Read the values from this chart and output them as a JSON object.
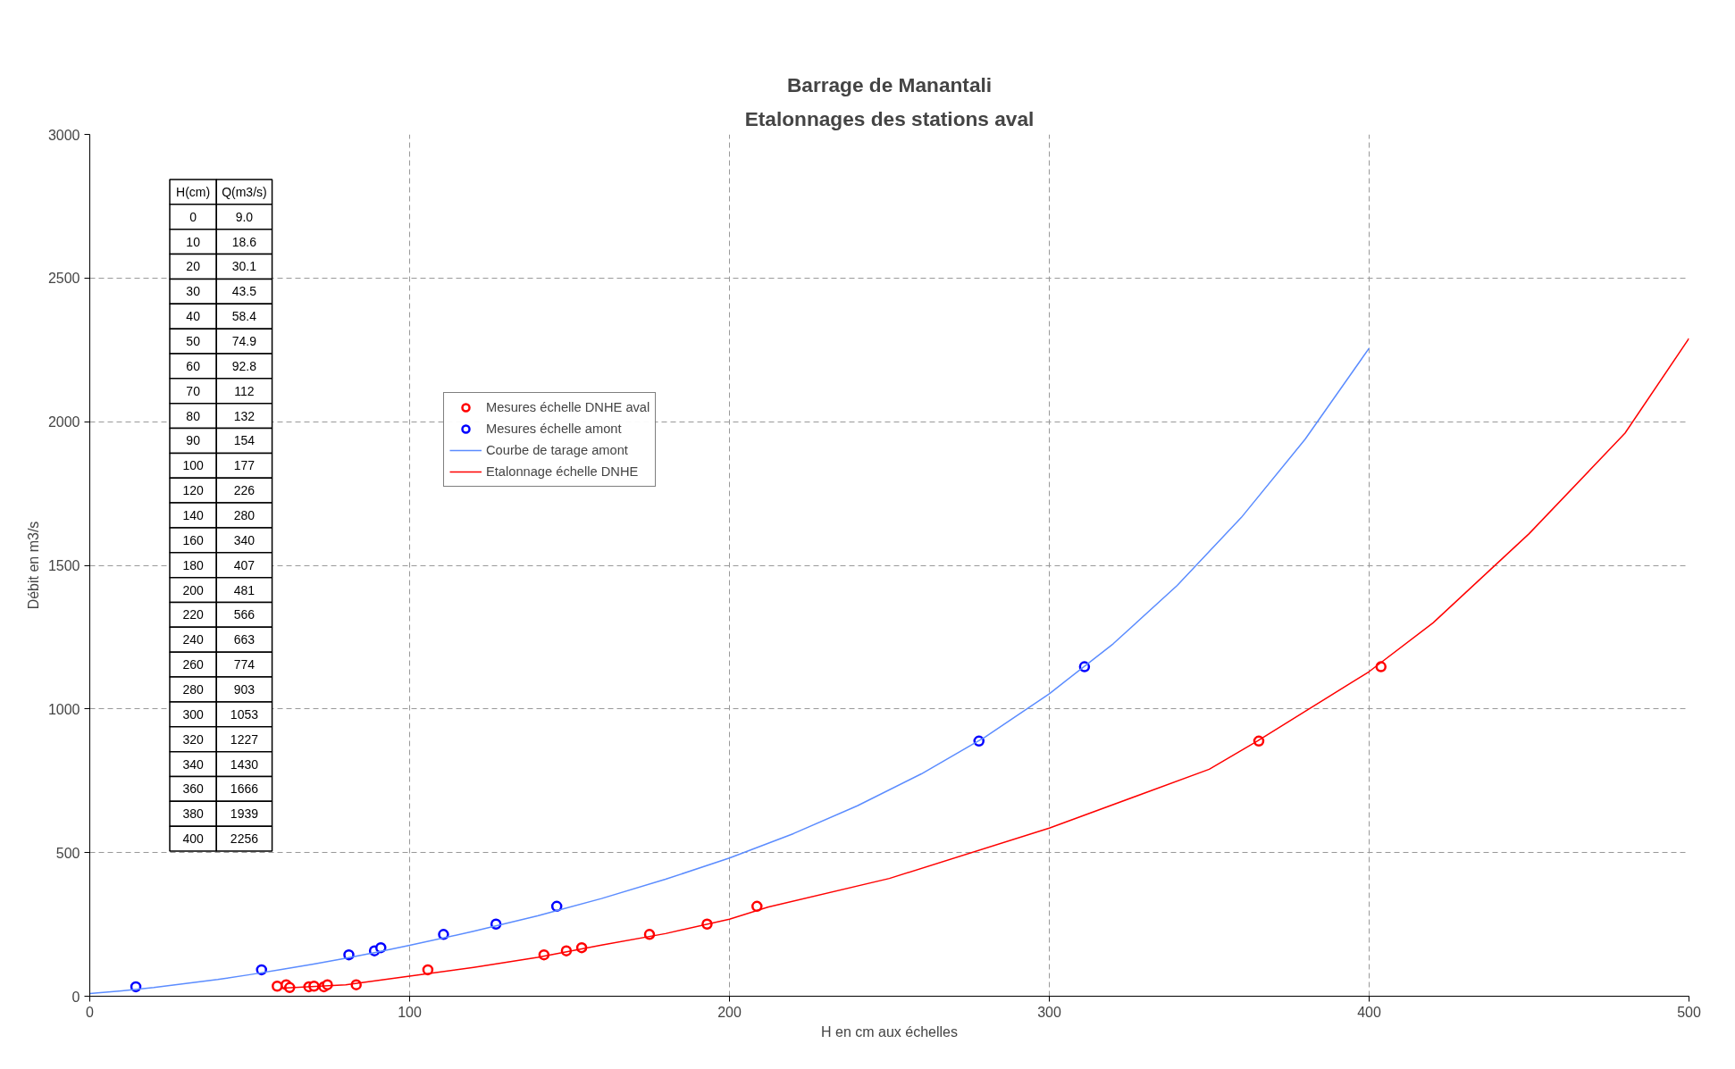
{
  "chart_data": [
    {
      "type": "scatter",
      "title": "Barrage de Manantali",
      "subtitle": "Etalonnages des stations aval",
      "xlabel": "H en cm aux échelles",
      "ylabel": "Débit en m3/s",
      "xlim": [
        0,
        500
      ],
      "ylim": [
        0,
        3000
      ],
      "xticks": [
        0,
        100,
        200,
        300,
        400,
        500
      ],
      "yticks": [
        0,
        500,
        1000,
        1500,
        2000,
        2500,
        3000
      ],
      "grid": true,
      "legend": "top left",
      "series": [
        {
          "name": "Mesures échelle DNHE aval",
          "marker": "circle",
          "color": "#ff0000",
          "x": [
            58.6,
            61.4,
            62.5,
            68.5,
            70.1,
            73.2,
            74.3,
            83.3,
            105.7,
            142,
            149,
            153.8,
            175,
            193,
            208.6,
            365.5,
            403.7
          ],
          "values": [
            35,
            40,
            30,
            33,
            35,
            33,
            40,
            40,
            92,
            144,
            158,
            169,
            215,
            251,
            313,
            888,
            1147
          ]
        },
        {
          "name": "Mesures échelle amont",
          "marker": "circle",
          "color": "#0000ff",
          "x": [
            14.4,
            53.7,
            81,
            89,
            91,
            110.6,
            127,
            146,
            278,
            311
          ],
          "values": [
            33,
            92,
            144,
            158,
            169,
            215,
            251,
            313,
            888,
            1147
          ]
        },
        {
          "name": "Courbe de tarage amont",
          "type": "line",
          "marker": "none",
          "color": "#5b8cff",
          "x": [
            0,
            10,
            20,
            30,
            40,
            50,
            60,
            70,
            80,
            90,
            100,
            120,
            140,
            160,
            180,
            200,
            220,
            240,
            260,
            280,
            300,
            320,
            340,
            360,
            380,
            400
          ],
          "values": [
            9,
            19,
            30,
            44,
            58,
            75,
            93,
            112,
            132,
            154,
            177,
            226,
            280,
            340,
            407,
            481,
            566,
            663,
            774,
            903,
            1053,
            1227,
            1430,
            1666,
            1939,
            2256
          ]
        },
        {
          "name": "Etalonnage échelle DNHE",
          "type": "line",
          "marker": "none",
          "color": "#ff0000",
          "x": [
            60,
            80,
            100,
            120,
            140,
            160,
            180,
            200,
            212,
            250,
            300,
            350,
            365,
            400,
            420,
            450,
            480,
            500
          ],
          "values": [
            28,
            40,
            70,
            100,
            135,
            178,
            218,
            268,
            310,
            410,
            585,
            790,
            888,
            1130,
            1300,
            1610,
            1960,
            2290
          ]
        }
      ]
    },
    {
      "type": "other",
      "annotations": [
        "H(cm)",
        "Q(m3/s)",
        "0",
        "9.0",
        "10",
        "18.6",
        "20",
        "30.1",
        "30",
        "43.5",
        "40",
        "58.4",
        "50",
        "74.9",
        "60",
        "92.8",
        "70",
        "112",
        "80",
        "132",
        "90",
        "154",
        "100",
        "177",
        "120",
        "226",
        "140",
        "280",
        "160",
        "340",
        "180",
        "407",
        "200",
        "481",
        "220",
        "566",
        "240",
        "663",
        "260",
        "774",
        "280",
        "903",
        "300",
        "1053",
        "320",
        "1227",
        "340",
        "1430",
        "360",
        "1666",
        "380",
        "1939",
        "400",
        "2256"
      ]
    }
  ]
}
